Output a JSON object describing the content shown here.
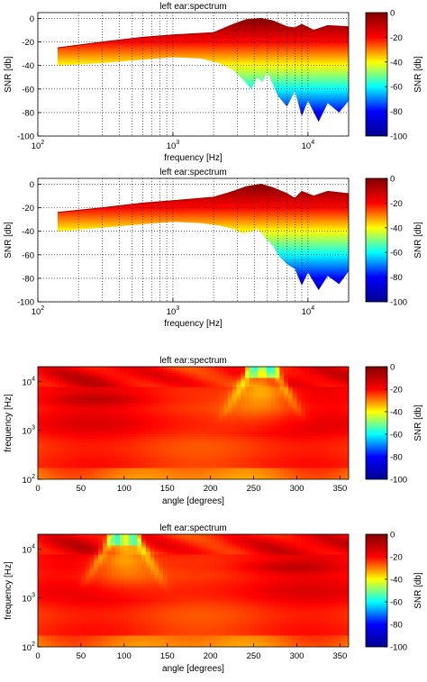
{
  "colormap": {
    "name": "jet",
    "stops": [
      "#00008f",
      "#0000ff",
      "#00ffff",
      "#ffff00",
      "#ff0000",
      "#800000"
    ]
  },
  "chart_data": [
    {
      "type": "area",
      "title": "left ear:spectrum",
      "xlabel": "frequency [Hz]",
      "ylabel": "SNR [db]",
      "xscale": "log",
      "xlim": [
        100,
        20000
      ],
      "ylim": [
        -100,
        5
      ],
      "xticks": [
        100,
        1000,
        10000
      ],
      "xticklabels": [
        {
          "base": "10",
          "exp": "2"
        },
        {
          "base": "10",
          "exp": "3"
        },
        {
          "base": "10",
          "exp": "4"
        }
      ],
      "yticks": [
        0,
        -20,
        -40,
        -60,
        -80,
        -100
      ],
      "grid": "dotted",
      "upper": {
        "x": [
          140,
          300,
          600,
          1000,
          2000,
          2800,
          3500,
          4500,
          5500,
          7000,
          8000,
          9000,
          11000,
          14000,
          20000
        ],
        "y": [
          -25,
          -20,
          -16,
          -14,
          -12,
          -5,
          -1,
          0,
          -2,
          -7,
          -8,
          -5,
          -10,
          -6,
          -7
        ]
      },
      "lower": {
        "x": [
          140,
          300,
          600,
          1000,
          1600,
          2200,
          2800,
          3300,
          3800,
          4200,
          4600,
          5000,
          5500,
          6000,
          7000,
          8000,
          9000,
          10000,
          12000,
          14000,
          17000,
          20000
        ],
        "y": [
          -40,
          -38,
          -35,
          -33,
          -34,
          -38,
          -44,
          -52,
          -60,
          -50,
          -54,
          -46,
          -56,
          -66,
          -75,
          -62,
          -83,
          -70,
          -88,
          -72,
          -80,
          -70
        ]
      },
      "colorbar": {
        "label": "SNR [db]",
        "ticks": [
          0,
          -20,
          -40,
          -60,
          -80,
          -100
        ],
        "lim": [
          -100,
          0
        ]
      }
    },
    {
      "type": "area",
      "title": "left ear:spectrum",
      "xlabel": "frequency [Hz]",
      "ylabel": "SNR [db]",
      "xscale": "log",
      "xlim": [
        100,
        20000
      ],
      "ylim": [
        -100,
        5
      ],
      "xticks": [
        100,
        1000,
        10000
      ],
      "xticklabels": [
        {
          "base": "10",
          "exp": "2"
        },
        {
          "base": "10",
          "exp": "3"
        },
        {
          "base": "10",
          "exp": "4"
        }
      ],
      "yticks": [
        0,
        -20,
        -40,
        -60,
        -80,
        -100
      ],
      "grid": "dotted",
      "upper": {
        "x": [
          140,
          300,
          600,
          1000,
          2000,
          2800,
          3500,
          4500,
          5500,
          7000,
          8000,
          9000,
          11000,
          14000,
          20000
        ],
        "y": [
          -24,
          -20,
          -16,
          -14,
          -11,
          -6,
          -2,
          0,
          -3,
          -8,
          -12,
          -6,
          -10,
          -6,
          -8
        ]
      },
      "lower": {
        "x": [
          140,
          300,
          600,
          1000,
          1600,
          2200,
          2800,
          3300,
          3800,
          4200,
          4600,
          5000,
          5500,
          6000,
          7000,
          8000,
          9000,
          10000,
          12000,
          14000,
          17000,
          20000
        ],
        "y": [
          -40,
          -37,
          -34,
          -32,
          -33,
          -35,
          -38,
          -42,
          -40,
          -38,
          -42,
          -48,
          -52,
          -60,
          -68,
          -72,
          -86,
          -75,
          -90,
          -78,
          -85,
          -74
        ]
      },
      "colorbar": {
        "label": "SNR [db]",
        "ticks": [
          0,
          -20,
          -40,
          -60,
          -80,
          -100
        ],
        "lim": [
          -100,
          0
        ]
      }
    },
    {
      "type": "heatmap",
      "title": "left ear:spectrum",
      "xlabel": "angle [degrees]",
      "ylabel": "frequency [Hz]",
      "xlim": [
        0,
        360
      ],
      "yscale": "log",
      "ylim": [
        100,
        20000
      ],
      "xticks": [
        0,
        50,
        100,
        150,
        200,
        250,
        300,
        350
      ],
      "yticks": [
        100,
        1000,
        10000
      ],
      "yticklabels": [
        {
          "base": "10",
          "exp": "2"
        },
        {
          "base": "10",
          "exp": "3"
        },
        {
          "base": "10",
          "exp": "4"
        }
      ],
      "features": {
        "bright_cone": {
          "angle": 260,
          "freq_lo": 1500,
          "freq_hi": 20000
        },
        "dark_band_freq": [
          3500,
          5000
        ],
        "deep_dark_angle": [
          20,
          120
        ]
      },
      "colorbar": {
        "label": "SNR [db]",
        "ticks": [
          0,
          -20,
          -40,
          -60,
          -80,
          -100
        ],
        "lim": [
          -100,
          0
        ]
      }
    },
    {
      "type": "heatmap",
      "title": "left ear:spectrum",
      "xlabel": "angle [degrees]",
      "ylabel": "frequency [Hz]",
      "xlim": [
        0,
        360
      ],
      "yscale": "log",
      "ylim": [
        100,
        20000
      ],
      "xticks": [
        0,
        50,
        100,
        150,
        200,
        250,
        300,
        350
      ],
      "yticks": [
        100,
        1000,
        10000
      ],
      "yticklabels": [
        {
          "base": "10",
          "exp": "2"
        },
        {
          "base": "10",
          "exp": "3"
        },
        {
          "base": "10",
          "exp": "4"
        }
      ],
      "features": {
        "bright_cone": {
          "angle": 100,
          "freq_lo": 1500,
          "freq_hi": 20000
        },
        "dark_band_freq": [
          3500,
          5000
        ],
        "deep_dark_angle": [
          240,
          340
        ]
      },
      "colorbar": {
        "label": "SNR [db]",
        "ticks": [
          0,
          -20,
          -40,
          -60,
          -80,
          -100
        ],
        "lim": [
          -100,
          0
        ]
      }
    }
  ]
}
